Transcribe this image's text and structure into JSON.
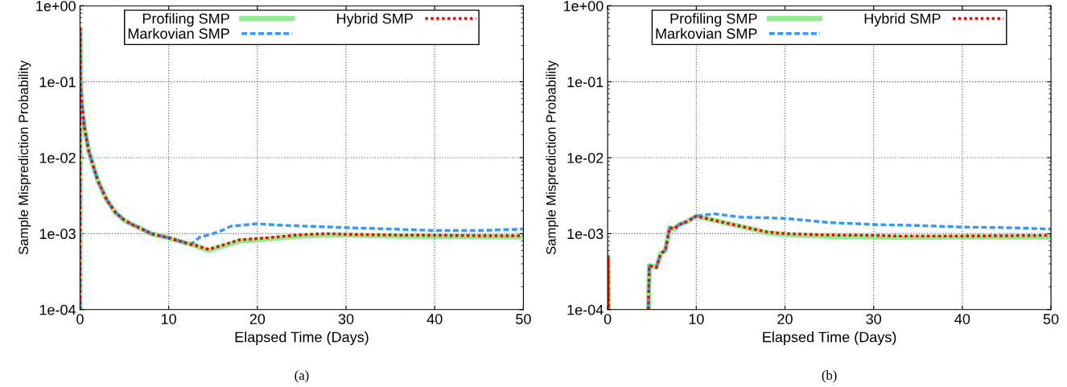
{
  "chart_data": [
    {
      "type": "line",
      "xlabel": "Elapsed Time (Days)",
      "ylabel": "Sample Misprediction Probability",
      "log": "y",
      "grid": true,
      "legend": "top",
      "xlim": [
        0,
        50
      ],
      "xticks": [
        0,
        10,
        20,
        30,
        40,
        50
      ],
      "ylim": [
        0.0001,
        1
      ],
      "yticks": [
        {
          "value": 0.0001,
          "label": "1e-04"
        },
        {
          "value": 0.001,
          "label": "1e-03"
        },
        {
          "value": 0.01,
          "label": "1e-02"
        },
        {
          "value": 0.1,
          "label": "1e-01"
        },
        {
          "value": 1,
          "label": "1e+00"
        }
      ],
      "annotations": [
        "(a)"
      ],
      "series": [
        {
          "name": "Profiling SMP",
          "color": "#90ee90",
          "line_style": "solid",
          "x": [
            0,
            0.02,
            0.05,
            0.2,
            0.5,
            1,
            2,
            3,
            4,
            5,
            6,
            7,
            8,
            10,
            12,
            13,
            14.5,
            16,
            18,
            20,
            22,
            25,
            28,
            30,
            35,
            40,
            45,
            50
          ],
          "values": [
            0.0001,
            0.5,
            0.1,
            0.05,
            0.025,
            0.012,
            0.005,
            0.0028,
            0.0019,
            0.0015,
            0.0013,
            0.00115,
            0.001,
            0.00088,
            0.00075,
            0.0007,
            0.0006,
            0.00068,
            0.0008,
            0.00083,
            0.00087,
            0.00093,
            0.00096,
            0.00096,
            0.00093,
            0.00092,
            0.00091,
            0.0009
          ]
        },
        {
          "name": "Markovian SMP",
          "color": "#3399ff",
          "line_style": "dashed",
          "x": [
            0,
            0.02,
            0.05,
            0.2,
            0.5,
            1,
            2,
            3,
            4,
            5,
            6,
            7,
            8,
            10,
            12,
            12.5,
            13.5,
            15,
            16,
            17,
            20,
            22,
            26,
            30,
            35,
            40,
            45,
            50
          ],
          "values": [
            0.0001,
            0.5,
            0.1,
            0.05,
            0.025,
            0.012,
            0.005,
            0.0028,
            0.0019,
            0.0015,
            0.0013,
            0.00115,
            0.001,
            0.00088,
            0.00075,
            0.00072,
            0.0009,
            0.001,
            0.0011,
            0.00125,
            0.00135,
            0.0013,
            0.00125,
            0.0012,
            0.00115,
            0.0011,
            0.0011,
            0.00115
          ]
        },
        {
          "name": "Hybrid SMP",
          "color": "#ff0000",
          "line_style": "dotted",
          "x": [
            0,
            0.02,
            0.05,
            0.2,
            0.5,
            1,
            2,
            3,
            4,
            5,
            6,
            7,
            8,
            10,
            12,
            13,
            14.5,
            16,
            18,
            20,
            22,
            25,
            28,
            30,
            35,
            40,
            45,
            50
          ],
          "values": [
            0.0001,
            0.5,
            0.1,
            0.05,
            0.025,
            0.012,
            0.005,
            0.0028,
            0.0019,
            0.0015,
            0.0013,
            0.00115,
            0.001,
            0.00088,
            0.00075,
            0.0007,
            0.00062,
            0.0007,
            0.00083,
            0.00086,
            0.0009,
            0.00097,
            0.001,
            0.00098,
            0.00096,
            0.00095,
            0.00094,
            0.00094
          ]
        }
      ]
    },
    {
      "type": "line",
      "xlabel": "Elapsed Time (Days)",
      "ylabel": "Sample Misprediction Probability",
      "log": "y",
      "grid": true,
      "legend": "top",
      "xlim": [
        0,
        50
      ],
      "xticks": [
        0,
        10,
        20,
        30,
        40,
        50
      ],
      "ylim": [
        0.0001,
        1
      ],
      "yticks": [
        {
          "value": 0.0001,
          "label": "1e-04"
        },
        {
          "value": 0.001,
          "label": "1e-03"
        },
        {
          "value": 0.01,
          "label": "1e-02"
        },
        {
          "value": 0.1,
          "label": "1e-01"
        },
        {
          "value": 1,
          "label": "1e+00"
        }
      ],
      "annotations": [
        "(b)"
      ],
      "series": [
        {
          "name": "Profiling SMP",
          "color": "#90ee90",
          "line_style": "solid",
          "x": [
            0,
            0.05,
            0.1,
            2,
            4.6,
            4.7,
            5.5,
            6,
            6.5,
            7,
            7.5,
            8,
            9,
            10,
            12,
            15,
            18,
            20,
            25,
            30,
            33,
            40,
            45,
            50
          ],
          "values": [
            0.0001,
            0.0005,
            0.0001,
            null,
            0.0001,
            0.00038,
            0.00036,
            0.00055,
            0.0006,
            0.0012,
            0.00115,
            0.0013,
            0.00145,
            0.0017,
            0.0015,
            0.00125,
            0.00103,
            0.00097,
            0.00092,
            0.0009,
            0.00089,
            0.0009,
            0.0009,
            0.0009
          ]
        },
        {
          "name": "Markovian SMP",
          "color": "#3399ff",
          "line_style": "dashed",
          "x": [
            0,
            0.05,
            0.1,
            2,
            4.6,
            4.7,
            5.5,
            6,
            6.5,
            7,
            7.5,
            8,
            9,
            10,
            12,
            15,
            20,
            25,
            30,
            35,
            40,
            45,
            50
          ],
          "values": [
            0.0001,
            0.0005,
            0.0001,
            null,
            0.0001,
            0.00038,
            0.00036,
            0.00055,
            0.0006,
            0.0012,
            0.00115,
            0.0013,
            0.00145,
            0.0017,
            0.00183,
            0.00165,
            0.00159,
            0.0014,
            0.00132,
            0.00128,
            0.00122,
            0.0012,
            0.00115
          ]
        },
        {
          "name": "Hybrid SMP",
          "color": "#ff0000",
          "line_style": "dotted",
          "x": [
            0,
            0.05,
            0.1,
            2,
            4.6,
            4.7,
            5.5,
            6,
            6.5,
            7,
            7.5,
            8,
            9,
            10,
            12,
            15,
            18,
            20,
            25,
            30,
            33,
            40,
            45,
            50
          ],
          "values": [
            0.0001,
            0.0005,
            0.0001,
            null,
            0.0001,
            0.00038,
            0.00036,
            0.00055,
            0.0006,
            0.0012,
            0.00115,
            0.0013,
            0.00145,
            0.0017,
            0.0015,
            0.00125,
            0.00105,
            0.001,
            0.00096,
            0.00095,
            0.00093,
            0.00093,
            0.00094,
            0.00095
          ]
        }
      ]
    }
  ]
}
